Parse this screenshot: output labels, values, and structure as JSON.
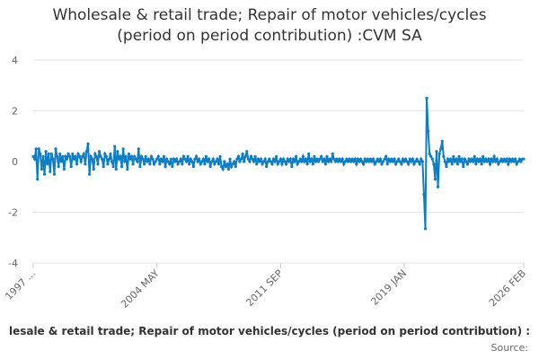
{
  "chart_data": {
    "type": "line",
    "title": [
      "Wholesale & retail trade; Repair of motor vehicles/cycles",
      "(period on period contribution) :CVM SA"
    ],
    "source": "Source:",
    "categories": [
      "1997 ...",
      null,
      null,
      null,
      null,
      null,
      null,
      null,
      null,
      null,
      null,
      null,
      null,
      null,
      null,
      null,
      null,
      null,
      null,
      null,
      null,
      null,
      null,
      null,
      null,
      null,
      null,
      null,
      null,
      null,
      null,
      null,
      null,
      null,
      null,
      null,
      null,
      null,
      null,
      null,
      null,
      null,
      null,
      null,
      null,
      null,
      null,
      null,
      null,
      null,
      null,
      null,
      null,
      null,
      null,
      null,
      null,
      null,
      null,
      null,
      null,
      null,
      null,
      null,
      null,
      null,
      null,
      null,
      null,
      null,
      null,
      null,
      null,
      null,
      null,
      null,
      null,
      null,
      null,
      null,
      null,
      null,
      null,
      null,
      null,
      null,
      null,
      null,
      "2004 MAY",
      null,
      null,
      null,
      null,
      null,
      null,
      null,
      null,
      null,
      null,
      null,
      null,
      null,
      null,
      null,
      null,
      null,
      null,
      null,
      null,
      null,
      null,
      null,
      null,
      null,
      null,
      null,
      null,
      null,
      null,
      null,
      null,
      null,
      null,
      null,
      null,
      null,
      null,
      null,
      null,
      null,
      null,
      null,
      null,
      null,
      null,
      null,
      null,
      null,
      null,
      null,
      null,
      null,
      null,
      null,
      null,
      null,
      null,
      null,
      null,
      null,
      null,
      null,
      null,
      null,
      null,
      null,
      null,
      null,
      null,
      null,
      null,
      null,
      null,
      null,
      null,
      null,
      null,
      null,
      null,
      null,
      null,
      null,
      null,
      null,
      null,
      null,
      "2011 SEP",
      null,
      null,
      null,
      null,
      null,
      null,
      null,
      null,
      null,
      null,
      null,
      null,
      null,
      null,
      null,
      null,
      null,
      null,
      null,
      null,
      null,
      null,
      null,
      null,
      null,
      null,
      null,
      null,
      null,
      null,
      null,
      null,
      null,
      null,
      null,
      null,
      null,
      null,
      null,
      null,
      null,
      null,
      null,
      null,
      null,
      null,
      null,
      null,
      null,
      null,
      null,
      null,
      null,
      null,
      null,
      null,
      null,
      null,
      null,
      null,
      null,
      null,
      null,
      null,
      null,
      null,
      null,
      null,
      null,
      null,
      null,
      null,
      null,
      null,
      null,
      null,
      null,
      null,
      null,
      null,
      null,
      null,
      null,
      null,
      null,
      null,
      null,
      "2019 JAN",
      null,
      null,
      null,
      null,
      null,
      null,
      null,
      null,
      null,
      null,
      null,
      null,
      null,
      null,
      null,
      null,
      null,
      null,
      null,
      null,
      null,
      null,
      null,
      null,
      null,
      null,
      null,
      null,
      null,
      null,
      null,
      null,
      null,
      null,
      null,
      null,
      null,
      null,
      null,
      null,
      null,
      null,
      null,
      null,
      null,
      null,
      null,
      null,
      null,
      null,
      null,
      null,
      null,
      null,
      null,
      null,
      null,
      null,
      null,
      null,
      null,
      null,
      null,
      null,
      null,
      null,
      null,
      null,
      null,
      null,
      null,
      null,
      null,
      null,
      null,
      null,
      null,
      null,
      null,
      null,
      null,
      null,
      null,
      null,
      "2026 FEB"
    ],
    "series": [
      {
        "name": "lesale & retail trade; Repair of motor vehicles/cycles (period on period contribution) :",
        "color": "#0f7dc2",
        "values": [
          0.2,
          0.1,
          0.5,
          -0.7,
          0.5,
          0.3,
          -0.3,
          0.2,
          -0.5,
          0.4,
          -0.1,
          0.3,
          -0.4,
          0.3,
          0.1,
          -0.5,
          0.5,
          0.2,
          -0.2,
          0.3,
          0.0,
          0.2,
          -0.3,
          0.2,
          0.1,
          0.3,
          0.2,
          -0.2,
          0.3,
          0.1,
          0.2,
          -0.1,
          0.3,
          0.2,
          0.0,
          0.2,
          0.3,
          -0.1,
          0.4,
          0.7,
          -0.5,
          0.2,
          0.1,
          -0.3,
          0.3,
          0.2,
          -0.1,
          0.4,
          0.2,
          0.1,
          -0.2,
          0.3,
          0.2,
          -0.1,
          0.1,
          0.3,
          0.0,
          -0.2,
          0.6,
          -0.3,
          0.4,
          0.1,
          0.2,
          -0.2,
          0.5,
          0.0,
          0.2,
          -0.3,
          0.3,
          0.1,
          0.2,
          -0.1,
          0.2,
          0.1,
          0.0,
          0.5,
          -0.2,
          0.2,
          0.1,
          -0.1,
          0.2,
          0.0,
          0.1,
          -0.1,
          0.2,
          0.1,
          -0.1,
          0.0,
          0.1,
          0.2,
          -0.1,
          0.1,
          0.0,
          0.2,
          -0.2,
          0.1,
          0.0,
          -0.1,
          0.1,
          -0.2,
          0.1,
          0.0,
          0.1,
          -0.1,
          0.0,
          0.1,
          -0.1,
          0.2,
          0.1,
          0.0,
          0.2,
          -0.1,
          0.1,
          0.0,
          -0.2,
          0.1,
          0.2,
          0.0,
          0.1,
          -0.1,
          0.0,
          0.1,
          -0.1,
          0.2,
          0.0,
          0.1,
          -0.2,
          0.0,
          0.1,
          -0.1,
          0.0,
          0.1,
          -0.1,
          0.2,
          -0.2,
          -0.3,
          0.0,
          -0.2,
          -0.1,
          -0.3,
          0.1,
          -0.2,
          -0.1,
          0.0,
          -0.2,
          0.1,
          0.2,
          0.0,
          0.1,
          0.3,
          0.0,
          0.2,
          0.4,
          0.1,
          0.0,
          0.2,
          0.1,
          0.0,
          0.2,
          -0.1,
          0.1,
          0.0,
          0.1,
          -0.1,
          0.0,
          0.1,
          -0.2,
          0.0,
          0.1,
          0.0,
          -0.1,
          0.1,
          0.0,
          0.2,
          -0.1,
          0.0,
          0.1,
          -0.1,
          0.1,
          0.0,
          -0.1,
          0.1,
          0.0,
          0.1,
          -0.2,
          0.1,
          0.0,
          0.2,
          -0.1,
          0.0,
          0.1,
          0.0,
          0.2,
          0.0,
          0.1,
          -0.1,
          0.3,
          0.0,
          0.1,
          -0.1,
          0.2,
          0.0,
          0.1,
          0.0,
          0.1,
          0.2,
          0.0,
          0.1,
          -0.1,
          0.2,
          0.0,
          0.1,
          0.0,
          0.3,
          0.1,
          0.0,
          0.1,
          0.0,
          0.1,
          0.0,
          0.1,
          -0.1,
          0.0,
          0.1,
          0.0,
          0.1,
          0.0,
          0.1,
          0.0,
          0.1,
          -0.1,
          0.1,
          0.0,
          0.1,
          0.0,
          -0.1,
          0.1,
          0.0,
          0.1,
          0.0,
          0.1,
          0.0,
          0.1,
          -0.1,
          0.0,
          0.1,
          0.0,
          0.1,
          -0.1,
          0.0,
          0.1,
          0.2,
          -0.1,
          0.1,
          0.0,
          0.1,
          0.0,
          0.1,
          -0.1,
          0.0,
          0.1,
          0.0,
          -0.1,
          0.1,
          0.0,
          0.1,
          0.0,
          -0.1,
          0.1,
          0.0,
          0.1,
          -0.1,
          0.0,
          0.1,
          0.0,
          -0.1,
          0.1,
          0.0,
          -1.3,
          -2.65,
          2.5,
          1.2,
          0.3,
          0.2,
          0.1,
          -0.1,
          -0.7,
          0.4,
          -1.0,
          0.3,
          0.5,
          0.8,
          0.2,
          0.0,
          -0.2,
          0.1,
          0.0,
          0.1,
          -0.1,
          0.2,
          0.0,
          0.1,
          -0.1,
          0.2,
          0.0,
          0.1,
          -0.2,
          0.1,
          0.0,
          -0.1,
          0.1,
          0.0,
          0.1,
          0.0,
          0.2,
          -0.1,
          0.1,
          0.0,
          0.1,
          -0.1,
          0.2,
          0.0,
          0.1,
          0.0,
          0.1,
          -0.1,
          0.1,
          0.0,
          0.2,
          0.0,
          0.1,
          -0.1,
          0.0,
          0.1,
          0.0,
          0.1,
          0.0,
          0.1,
          -0.1,
          0.1,
          0.0,
          0.1,
          0.0,
          0.1,
          -0.1,
          0.0,
          0.1,
          0.0,
          0.1,
          0.1
        ]
      }
    ],
    "ylim": [
      -4,
      4
    ],
    "yticks": [
      -4,
      -2,
      0,
      2,
      4
    ],
    "grid": true
  }
}
